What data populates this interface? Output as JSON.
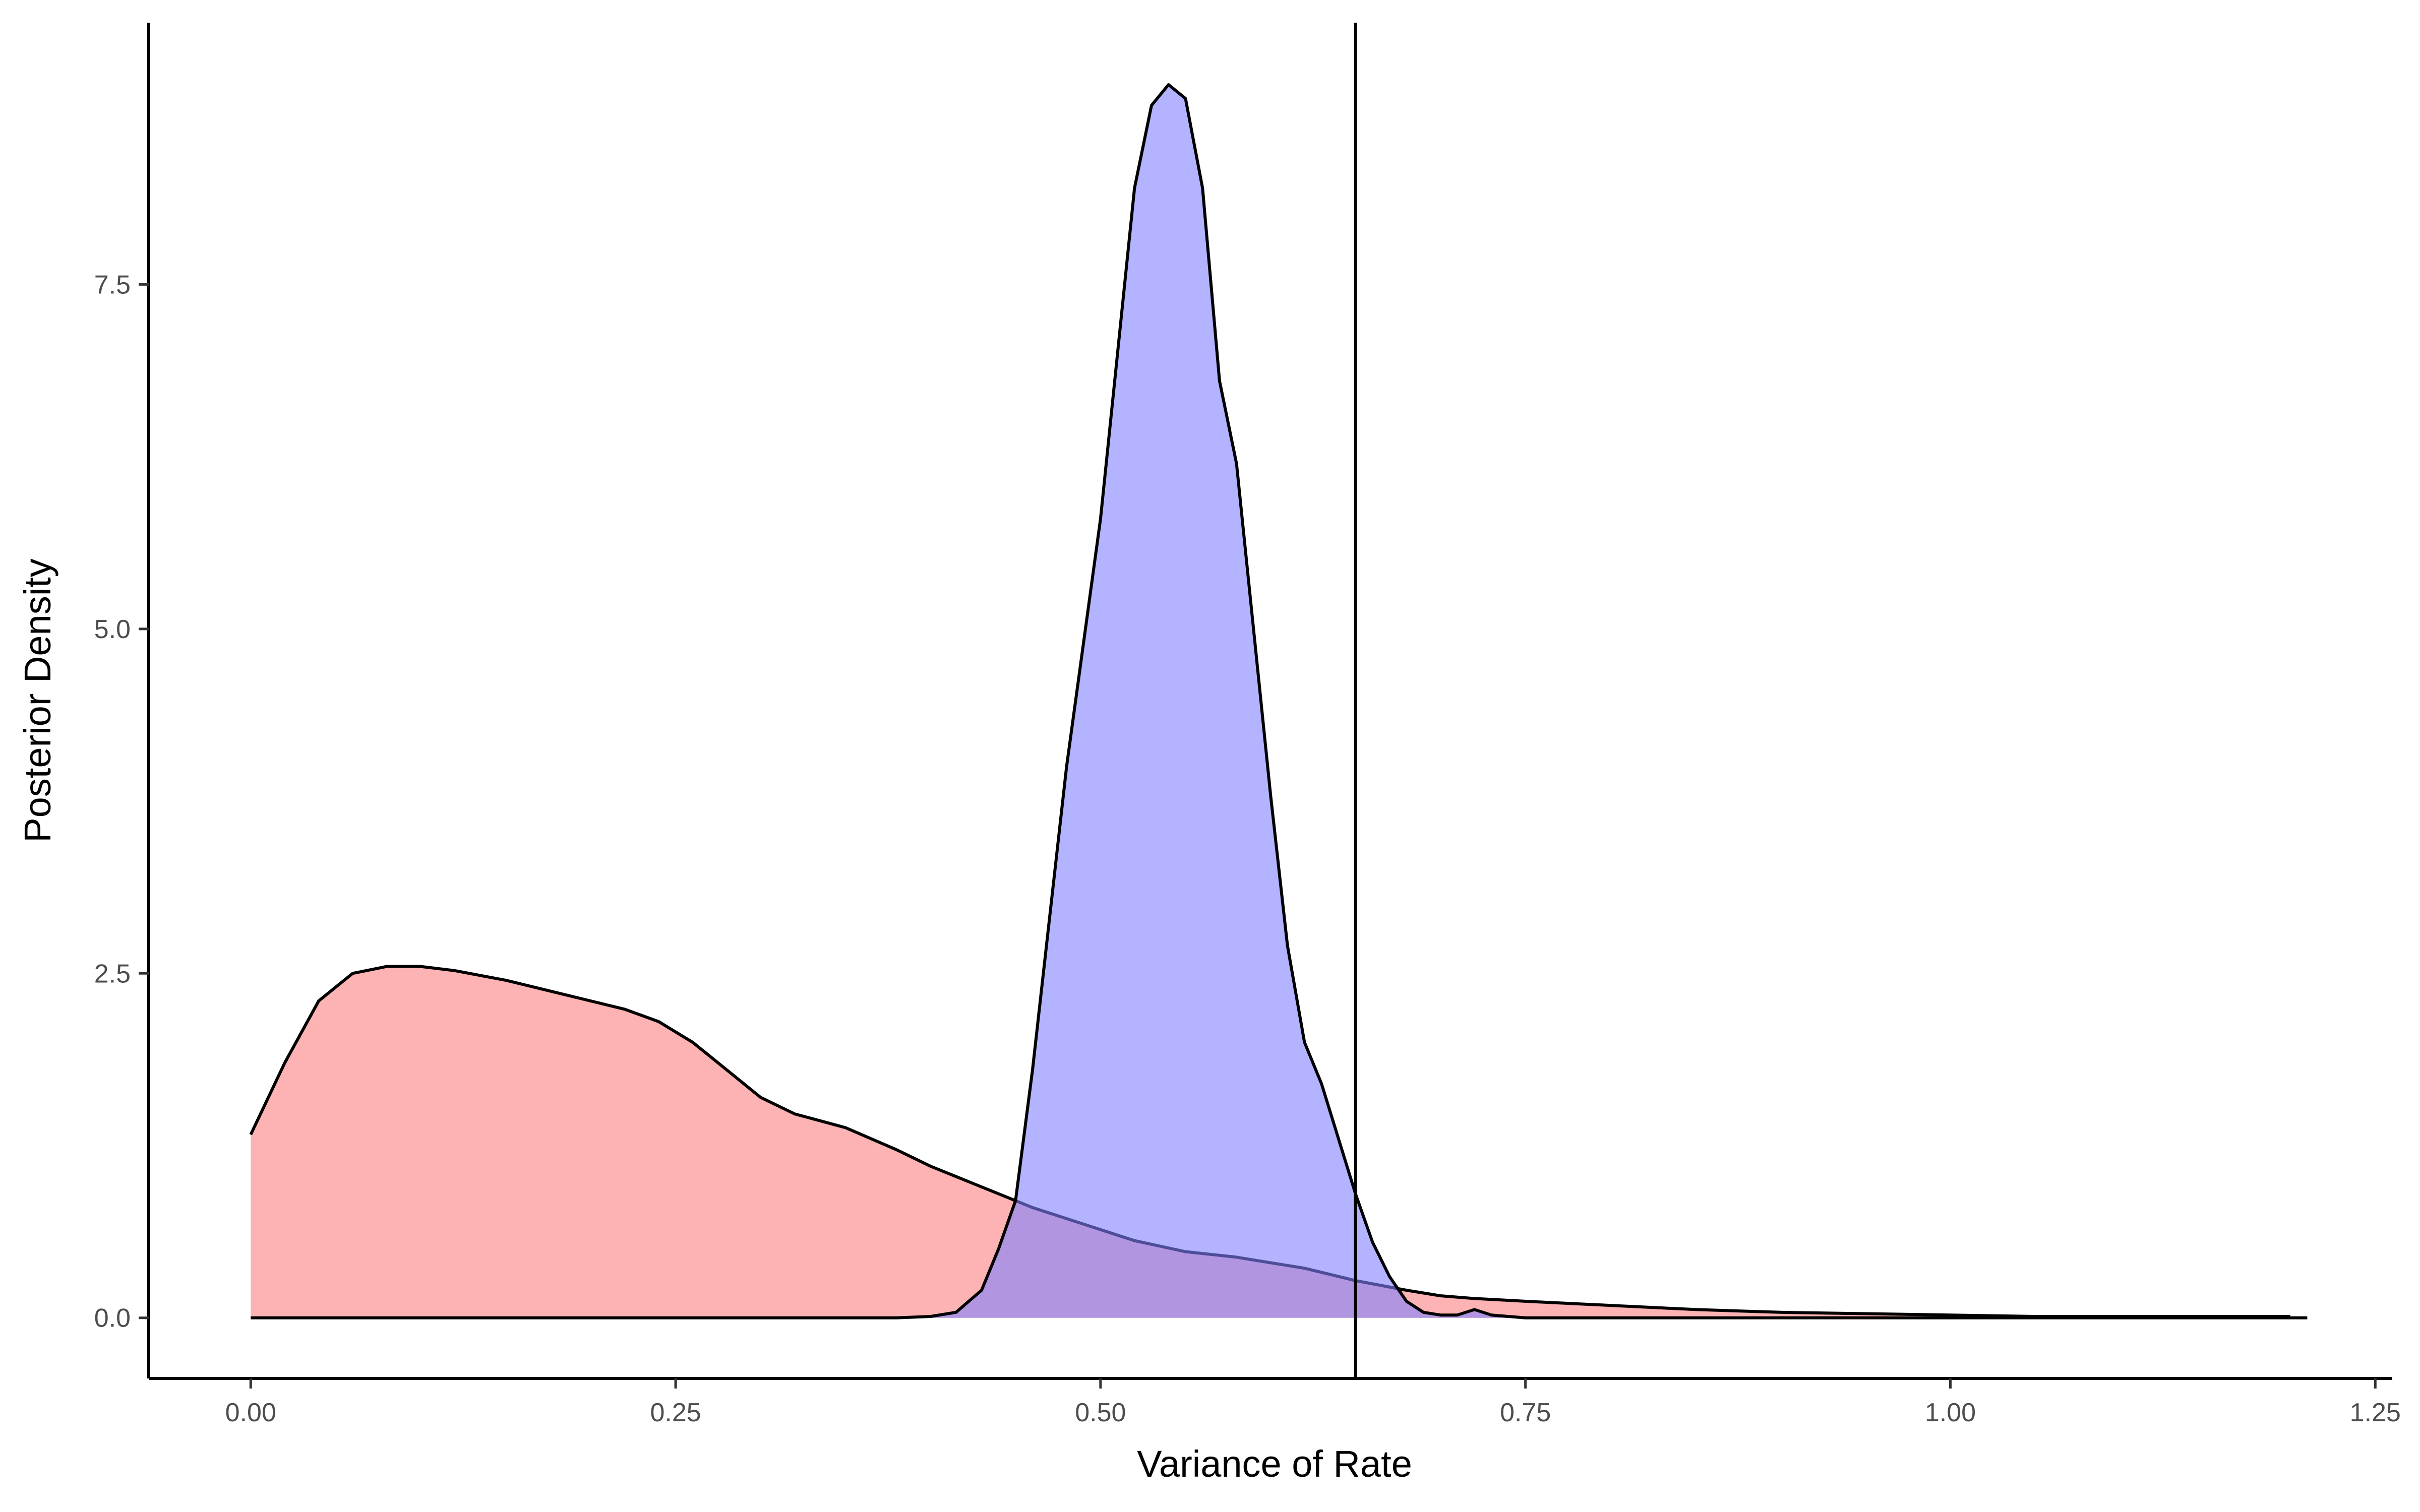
{
  "chart_data": {
    "type": "area",
    "title": "",
    "xlabel": "Variance of Rate",
    "ylabel": "Posterior Density",
    "xlim": [
      -0.06,
      1.26
    ],
    "ylim": [
      -0.44,
      9.4
    ],
    "x_ticks": [
      0.0,
      0.25,
      0.5,
      0.75,
      1.0,
      1.25
    ],
    "x_tick_labels": [
      "0.00",
      "0.25",
      "0.50",
      "0.75",
      "1.00",
      "1.25"
    ],
    "y_ticks": [
      0.0,
      2.5,
      5.0,
      7.5
    ],
    "y_tick_labels": [
      "0.0",
      "2.5",
      "5.0",
      "7.5"
    ],
    "grid": false,
    "legend": "none",
    "reference_line": {
      "orientation": "vertical",
      "x": 0.65,
      "color": "#000000"
    },
    "series": [
      {
        "fill": "#fc8181",
        "fill_opacity": 0.6,
        "stroke": "#000000",
        "x": [
          0.0,
          0.02,
          0.04,
          0.06,
          0.08,
          0.1,
          0.12,
          0.15,
          0.18,
          0.2,
          0.22,
          0.24,
          0.26,
          0.28,
          0.3,
          0.32,
          0.35,
          0.38,
          0.4,
          0.43,
          0.46,
          0.49,
          0.52,
          0.55,
          0.58,
          0.6,
          0.62,
          0.65,
          0.68,
          0.7,
          0.72,
          0.75,
          0.8,
          0.85,
          0.9,
          0.95,
          1.0,
          1.05,
          1.1,
          1.15,
          1.2
        ],
        "y": [
          1.33,
          1.85,
          2.3,
          2.5,
          2.55,
          2.55,
          2.52,
          2.45,
          2.36,
          2.3,
          2.24,
          2.15,
          2.0,
          1.8,
          1.6,
          1.48,
          1.38,
          1.22,
          1.1,
          0.95,
          0.8,
          0.68,
          0.56,
          0.48,
          0.44,
          0.4,
          0.36,
          0.27,
          0.2,
          0.16,
          0.14,
          0.12,
          0.09,
          0.06,
          0.04,
          0.03,
          0.02,
          0.01,
          0.01,
          0.01,
          0.01
        ]
      },
      {
        "fill": "#8080ff",
        "fill_opacity": 0.6,
        "stroke": "#000000",
        "x": [
          0.0,
          0.38,
          0.4,
          0.415,
          0.43,
          0.44,
          0.45,
          0.46,
          0.47,
          0.48,
          0.5,
          0.51,
          0.52,
          0.53,
          0.54,
          0.55,
          0.56,
          0.57,
          0.58,
          0.59,
          0.6,
          0.61,
          0.62,
          0.63,
          0.64,
          0.65,
          0.66,
          0.67,
          0.68,
          0.69,
          0.7,
          0.71,
          0.72,
          0.73,
          0.75,
          0.8,
          1.0,
          1.21
        ],
        "y": [
          0.0,
          0.0,
          0.01,
          0.04,
          0.2,
          0.5,
          0.85,
          1.8,
          2.9,
          4.0,
          5.8,
          7.0,
          8.2,
          8.8,
          8.95,
          8.85,
          8.2,
          6.8,
          6.2,
          5.0,
          3.8,
          2.7,
          2.0,
          1.7,
          1.3,
          0.9,
          0.55,
          0.3,
          0.12,
          0.04,
          0.02,
          0.02,
          0.06,
          0.02,
          0.0,
          0.0,
          0.0,
          0.0
        ]
      }
    ]
  }
}
